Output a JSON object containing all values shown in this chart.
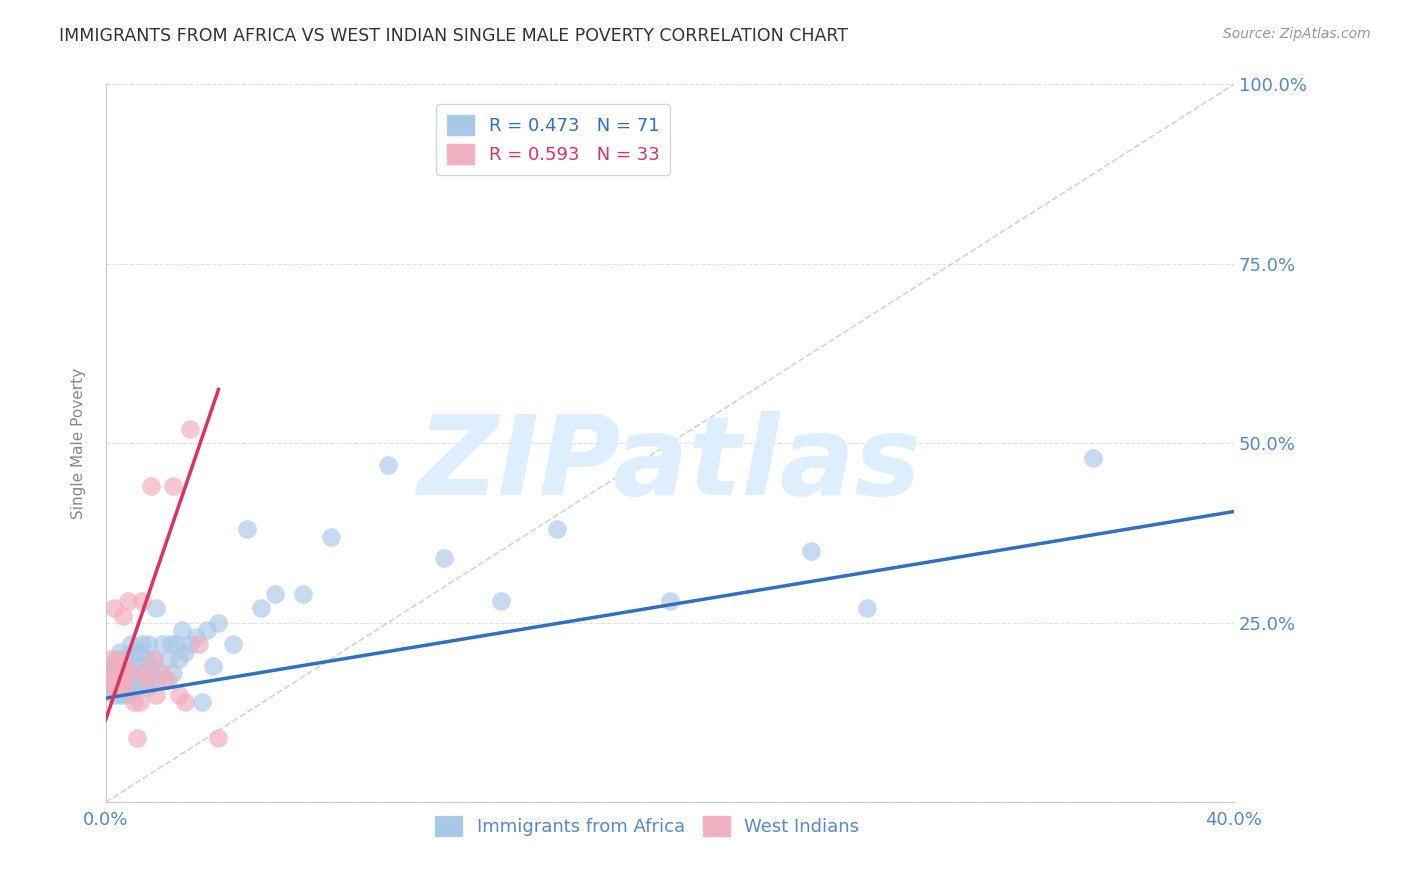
{
  "title": "IMMIGRANTS FROM AFRICA VS WEST INDIAN SINGLE MALE POVERTY CORRELATION CHART",
  "source": "Source: ZipAtlas.com",
  "ylabel": "Single Male Poverty",
  "xlim": [
    0.0,
    0.4
  ],
  "ylim": [
    0.0,
    1.0
  ],
  "xtick_positions": [
    0.0,
    0.08,
    0.16,
    0.24,
    0.32,
    0.4
  ],
  "xtick_labels": [
    "0.0%",
    "",
    "",
    "",
    "",
    "40.0%"
  ],
  "ytick_positions": [
    0.0,
    0.25,
    0.5,
    0.75,
    1.0
  ],
  "ytick_labels": [
    "",
    "25.0%",
    "50.0%",
    "75.0%",
    "100.0%"
  ],
  "africa_R": 0.473,
  "africa_N": 71,
  "west_indian_R": 0.593,
  "west_indian_N": 33,
  "blue_fill": "#a8c8e8",
  "blue_edge": "#a8c8e8",
  "pink_fill": "#f0b0c0",
  "pink_edge": "#f0b0c0",
  "blue_line_color": "#3070c0",
  "pink_line_color": "#e03060",
  "diagonal_color": "#ccbbcc",
  "background_color": "#ffffff",
  "grid_color": "#dde0ee",
  "title_color": "#333333",
  "axis_label_color": "#5588cc",
  "watermark_text": "ZIPatlas",
  "watermark_color": "#ddeeff",
  "watermark_fontsize": 80,
  "africa_x": [
    0.001,
    0.001,
    0.002,
    0.002,
    0.003,
    0.003,
    0.003,
    0.004,
    0.004,
    0.004,
    0.005,
    0.005,
    0.005,
    0.006,
    0.006,
    0.006,
    0.007,
    0.007,
    0.007,
    0.008,
    0.008,
    0.009,
    0.009,
    0.009,
    0.01,
    0.01,
    0.01,
    0.011,
    0.011,
    0.012,
    0.012,
    0.013,
    0.013,
    0.014,
    0.014,
    0.015,
    0.015,
    0.016,
    0.017,
    0.018,
    0.018,
    0.019,
    0.02,
    0.021,
    0.022,
    0.023,
    0.024,
    0.025,
    0.026,
    0.027,
    0.028,
    0.03,
    0.032,
    0.034,
    0.036,
    0.038,
    0.04,
    0.045,
    0.05,
    0.055,
    0.06,
    0.07,
    0.08,
    0.1,
    0.12,
    0.14,
    0.16,
    0.2,
    0.25,
    0.27,
    0.35
  ],
  "africa_y": [
    0.17,
    0.19,
    0.16,
    0.18,
    0.15,
    0.17,
    0.19,
    0.16,
    0.18,
    0.2,
    0.15,
    0.17,
    0.21,
    0.16,
    0.18,
    0.2,
    0.15,
    0.17,
    0.19,
    0.16,
    0.2,
    0.15,
    0.17,
    0.22,
    0.16,
    0.18,
    0.21,
    0.17,
    0.19,
    0.16,
    0.21,
    0.18,
    0.22,
    0.17,
    0.2,
    0.16,
    0.22,
    0.19,
    0.2,
    0.17,
    0.27,
    0.18,
    0.22,
    0.17,
    0.2,
    0.22,
    0.18,
    0.22,
    0.2,
    0.24,
    0.21,
    0.22,
    0.23,
    0.14,
    0.24,
    0.19,
    0.25,
    0.22,
    0.38,
    0.27,
    0.29,
    0.29,
    0.37,
    0.47,
    0.34,
    0.28,
    0.38,
    0.28,
    0.35,
    0.27,
    0.48
  ],
  "west_indian_x": [
    0.001,
    0.001,
    0.002,
    0.002,
    0.003,
    0.003,
    0.004,
    0.004,
    0.005,
    0.005,
    0.006,
    0.006,
    0.007,
    0.007,
    0.008,
    0.009,
    0.01,
    0.011,
    0.012,
    0.013,
    0.014,
    0.015,
    0.016,
    0.017,
    0.018,
    0.02,
    0.022,
    0.024,
    0.026,
    0.028,
    0.03,
    0.033,
    0.04
  ],
  "west_indian_y": [
    0.17,
    0.18,
    0.16,
    0.2,
    0.17,
    0.27,
    0.16,
    0.19,
    0.17,
    0.2,
    0.26,
    0.17,
    0.16,
    0.19,
    0.28,
    0.18,
    0.14,
    0.09,
    0.14,
    0.28,
    0.18,
    0.17,
    0.44,
    0.2,
    0.15,
    0.18,
    0.17,
    0.44,
    0.15,
    0.14,
    0.52,
    0.22,
    0.09
  ],
  "africa_line_x": [
    0.0,
    0.4
  ],
  "africa_line_y": [
    0.145,
    0.405
  ],
  "wi_line_x": [
    0.0,
    0.04
  ],
  "wi_line_y": [
    0.115,
    0.575
  ]
}
